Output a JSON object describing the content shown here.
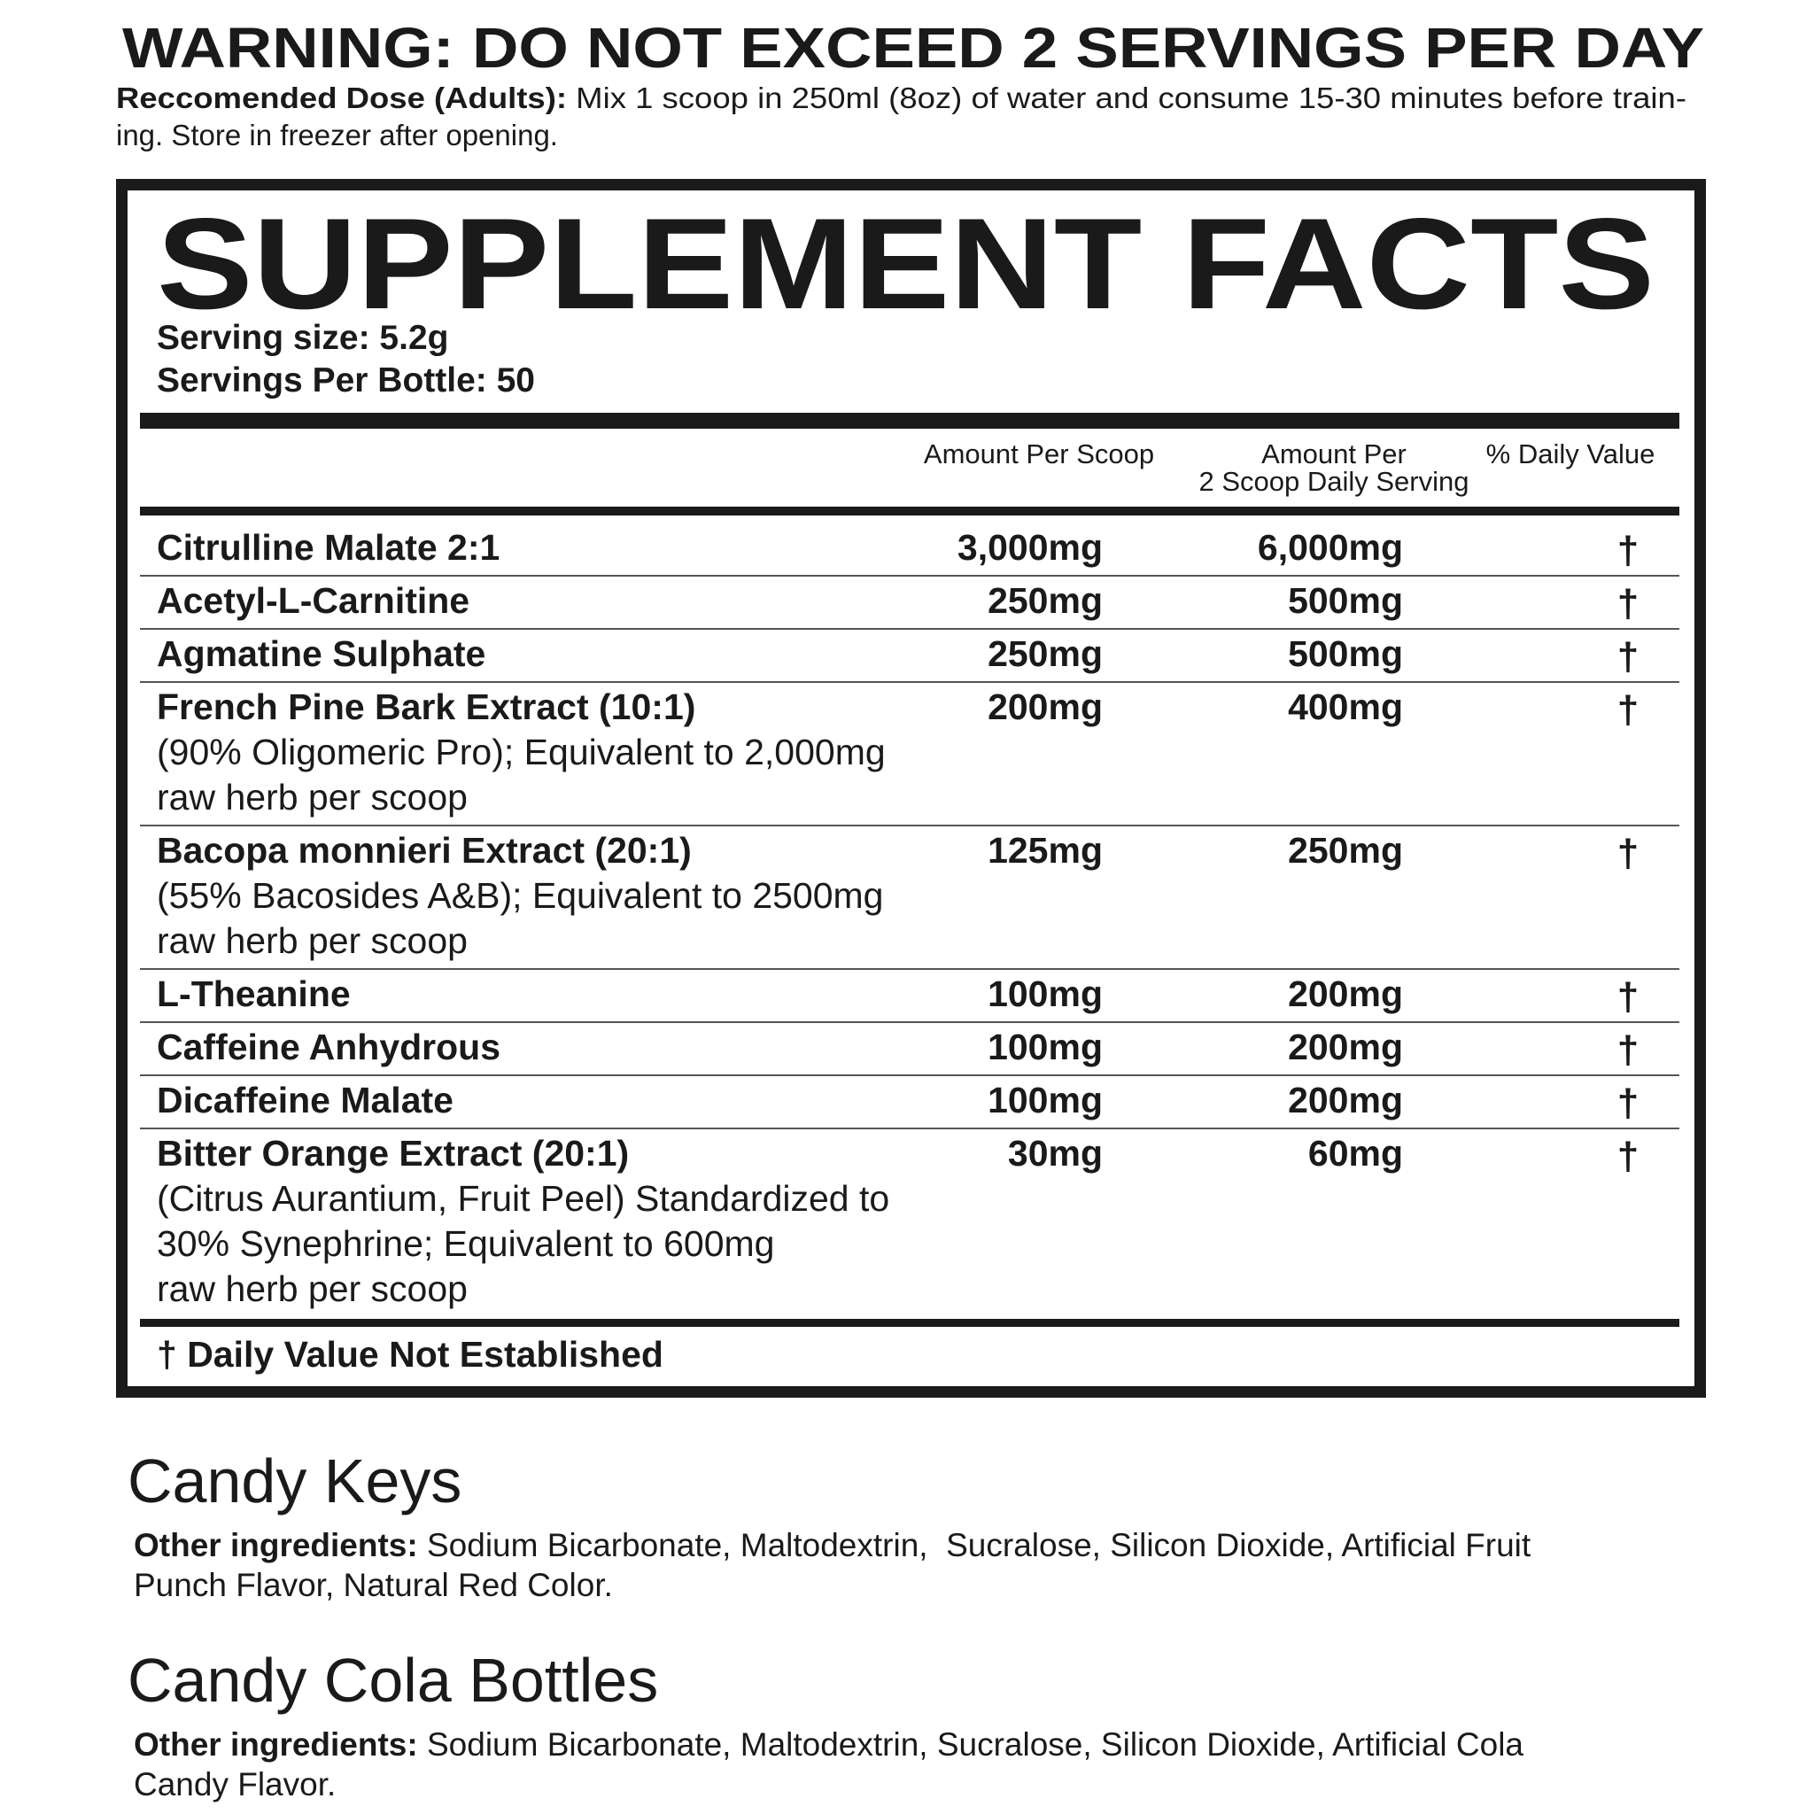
{
  "warning": "WARNING: DO NOT EXCEED 2 SERVINGS PER DAY",
  "dose": {
    "label": "Reccomended Dose (Adults):",
    "lines": [
      " Mix 1 scoop in 250ml (8oz) of water and consume 15-30 minutes before train-",
      "ing. Store in freezer after opening."
    ]
  },
  "facts": {
    "title": "SUPPLEMENT FACTS",
    "serving_size": "Serving size: 5.2g",
    "servings_per_bottle": "Servings Per Bottle: 50",
    "headers": {
      "per_scoop": "Amount Per Scoop",
      "per_serving": [
        "Amount Per",
        "2 Scoop Daily Serving"
      ],
      "daily_value": "% Daily Value"
    },
    "rows": [
      {
        "name": "Citrulline Malate 2:1",
        "details": [],
        "per_scoop": "3,000mg",
        "per_serving": "6,000mg",
        "daily_value": "†"
      },
      {
        "name": "Acetyl-L-Carnitine",
        "details": [],
        "per_scoop": "250mg",
        "per_serving": "500mg",
        "daily_value": "†"
      },
      {
        "name": "Agmatine Sulphate",
        "details": [],
        "per_scoop": "250mg",
        "per_serving": "500mg",
        "daily_value": "†"
      },
      {
        "name": "French Pine Bark Extract (10:1)",
        "details": [
          "(90% Oligomeric Pro); Equivalent to 2,000mg",
          "raw herb per scoop"
        ],
        "per_scoop": "200mg",
        "per_serving": "400mg",
        "daily_value": "†"
      },
      {
        "name": "Bacopa monnieri Extract (20:1)",
        "details": [
          "(55% Bacosides A&B); Equivalent to 2500mg",
          "raw herb per scoop"
        ],
        "per_scoop": "125mg",
        "per_serving": "250mg",
        "daily_value": "†"
      },
      {
        "name": "L-Theanine",
        "details": [],
        "per_scoop": "100mg",
        "per_serving": "200mg",
        "daily_value": "†"
      },
      {
        "name": "Caffeine Anhydrous",
        "details": [],
        "per_scoop": "100mg",
        "per_serving": "200mg",
        "daily_value": "†"
      },
      {
        "name": "Dicaffeine Malate",
        "details": [],
        "per_scoop": "100mg",
        "per_serving": "200mg",
        "daily_value": "†"
      },
      {
        "name": "Bitter Orange Extract (20:1)",
        "details": [
          "(Citrus Aurantium, Fruit Peel) Standardized to",
          "30% Synephrine; Equivalent to 600mg",
          "raw herb per scoop"
        ],
        "per_scoop": "30mg",
        "per_serving": "60mg",
        "daily_value": "†"
      }
    ],
    "footnote": "† Daily Value Not Established"
  },
  "flavors": [
    {
      "name": "Candy Keys",
      "label": "Other ingredients:",
      "lines": [
        " Sodium Bicarbonate, Maltodextrin,  Sucralose, Silicon Dioxide, Artificial Fruit",
        "Punch Flavor, Natural Red Color."
      ]
    },
    {
      "name": "Candy Cola Bottles",
      "label": "Other ingredients:",
      "lines": [
        " Sodium Bicarbonate, Maltodextrin, Sucralose, Silicon Dioxide, Artificial Cola",
        "Candy Flavor."
      ]
    }
  ]
}
